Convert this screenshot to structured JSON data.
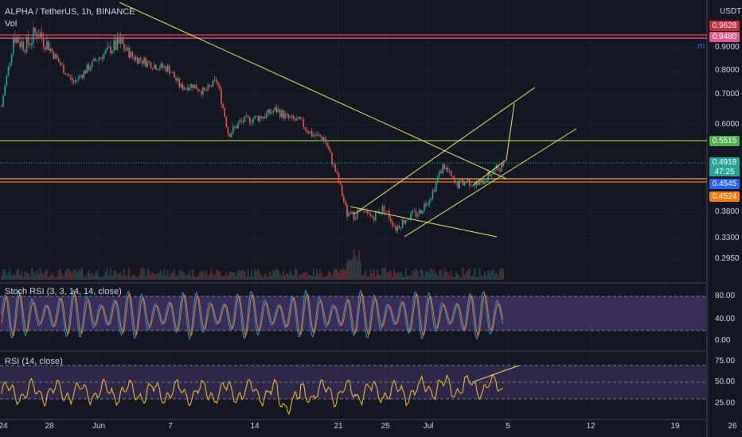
{
  "header": {
    "title": "ALPHA / TetherUS, 1h, BINANCE",
    "vol_label": "Vol",
    "stoch_label": "Stoch RSI (3, 3, 14, 14, close)",
    "rsi_label": "RSI (14, close)",
    "currency": "USDT",
    "m_mark": "m"
  },
  "price_axis": {
    "ticks": [
      "0.9000",
      "0.8000",
      "0.7000",
      "0.6000",
      "0.3800",
      "0.3300",
      "0.2950"
    ],
    "badges": [
      {
        "value": "0.9628",
        "color": "#c2313f"
      },
      {
        "value": "0.9480",
        "color": "#e05a8c"
      },
      {
        "value": "0.5515",
        "color": "#4caf50"
      },
      {
        "value": "0.4918",
        "color": "#26a69a"
      },
      {
        "value": "0.4545",
        "color": "#2962ff"
      },
      {
        "value": "0.4524",
        "color": "#f57c00"
      }
    ],
    "countdown": "47:25"
  },
  "stoch_axis": {
    "ticks": [
      "80.00",
      "40.00",
      "0.00"
    ]
  },
  "rsi_axis": {
    "ticks": [
      "75.00",
      "50.00",
      "25.00"
    ]
  },
  "time_axis": {
    "labels": [
      "24",
      "28",
      "Jun",
      "7",
      "14",
      "21",
      "25",
      "Jul",
      "5",
      "12",
      "19",
      "26"
    ]
  },
  "chart_data": {
    "type": "candlestick",
    "symbol": "ALPHA / TetherUS",
    "interval": "1h",
    "exchange": "BINANCE",
    "price_close_path": [
      {
        "x": "May 24",
        "y": 0.66
      },
      {
        "x": "May 25",
        "y": 0.93
      },
      {
        "x": "May 26",
        "y": 0.9
      },
      {
        "x": "May 27",
        "y": 0.94
      },
      {
        "x": "May 28",
        "y": 0.9
      },
      {
        "x": "May 29",
        "y": 0.82
      },
      {
        "x": "May 30",
        "y": 0.75
      },
      {
        "x": "May 31",
        "y": 0.8
      },
      {
        "x": "Jun 1",
        "y": 0.85
      },
      {
        "x": "Jun 2",
        "y": 0.89
      },
      {
        "x": "Jun 3",
        "y": 0.91
      },
      {
        "x": "Jun 4",
        "y": 0.86
      },
      {
        "x": "Jun 5",
        "y": 0.84
      },
      {
        "x": "Jun 6",
        "y": 0.82
      },
      {
        "x": "Jun 7",
        "y": 0.81
      },
      {
        "x": "Jun 8",
        "y": 0.73
      },
      {
        "x": "Jun 9",
        "y": 0.74
      },
      {
        "x": "Jun 10",
        "y": 0.71
      },
      {
        "x": "Jun 11",
        "y": 0.76
      },
      {
        "x": "Jun 12",
        "y": 0.57
      },
      {
        "x": "Jun 13",
        "y": 0.61
      },
      {
        "x": "Jun 14",
        "y": 0.62
      },
      {
        "x": "Jun 15",
        "y": 0.63
      },
      {
        "x": "Jun 16",
        "y": 0.65
      },
      {
        "x": "Jun 17",
        "y": 0.62
      },
      {
        "x": "Jun 18",
        "y": 0.61
      },
      {
        "x": "Jun 19",
        "y": 0.57
      },
      {
        "x": "Jun 20",
        "y": 0.56
      },
      {
        "x": "Jun 21",
        "y": 0.47
      },
      {
        "x": "Jun 22",
        "y": 0.37
      },
      {
        "x": "Jun 23",
        "y": 0.38
      },
      {
        "x": "Jun 24",
        "y": 0.37
      },
      {
        "x": "Jun 25",
        "y": 0.39
      },
      {
        "x": "Jun 26",
        "y": 0.35
      },
      {
        "x": "Jun 27",
        "y": 0.37
      },
      {
        "x": "Jun 28",
        "y": 0.38
      },
      {
        "x": "Jun 29",
        "y": 0.42
      },
      {
        "x": "Jun 30",
        "y": 0.49
      },
      {
        "x": "Jul 1",
        "y": 0.44
      },
      {
        "x": "Jul 2",
        "y": 0.45
      },
      {
        "x": "Jul 3",
        "y": 0.44
      },
      {
        "x": "Jul 4",
        "y": 0.47
      },
      {
        "x": "Jul 5",
        "y": 0.49
      }
    ],
    "horizontal_levels": [
      0.9628,
      0.948,
      0.5515,
      0.4918,
      0.4545,
      0.4524
    ],
    "stoch_rsi_bands": [
      80,
      20
    ],
    "rsi_bands": [
      70,
      50,
      30
    ]
  }
}
